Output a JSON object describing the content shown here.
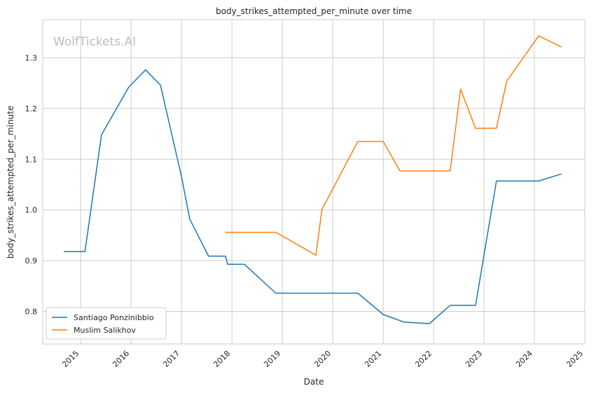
{
  "chart_data": {
    "type": "line",
    "title": "body_strikes_attempted_per_minute over time",
    "xlabel": "Date",
    "ylabel": "body_strikes_attempted_per_minute",
    "watermark": "WolfTickets.AI",
    "x_axis_type": "date",
    "xlim": [
      "2014-04-01",
      "2025-01-01"
    ],
    "ylim": [
      0.736,
      1.375
    ],
    "x_ticks": [
      "2015-01-01",
      "2016-01-01",
      "2017-01-01",
      "2018-01-01",
      "2019-01-01",
      "2020-01-01",
      "2021-01-01",
      "2022-01-01",
      "2023-01-01",
      "2024-01-01",
      "2025-01-01"
    ],
    "x_tick_labels": [
      "2015",
      "2016",
      "2017",
      "2018",
      "2019",
      "2020",
      "2021",
      "2022",
      "2023",
      "2024",
      "2025"
    ],
    "y_ticks": [
      0.8,
      0.9,
      1.0,
      1.1,
      1.2,
      1.3
    ],
    "y_tick_labels": [
      "0.8",
      "0.9",
      "1.0",
      "1.1",
      "1.2",
      "1.3"
    ],
    "grid": true,
    "legend_position": "lower-left",
    "series": [
      {
        "name": "Santiago Ponzinibbio",
        "color": "#1f77b4",
        "points": [
          {
            "x": "2014-09-01",
            "y": 0.918
          },
          {
            "x": "2015-02-01",
            "y": 0.918
          },
          {
            "x": "2015-06-01",
            "y": 1.148
          },
          {
            "x": "2015-12-15",
            "y": 1.242
          },
          {
            "x": "2016-04-15",
            "y": 1.276
          },
          {
            "x": "2016-08-01",
            "y": 1.246
          },
          {
            "x": "2017-01-01",
            "y": 1.065
          },
          {
            "x": "2017-03-01",
            "y": 0.982
          },
          {
            "x": "2017-07-15",
            "y": 0.909
          },
          {
            "x": "2017-11-15",
            "y": 0.909
          },
          {
            "x": "2017-12-01",
            "y": 0.893
          },
          {
            "x": "2018-04-01",
            "y": 0.893
          },
          {
            "x": "2018-11-15",
            "y": 0.836
          },
          {
            "x": "2019-07-01",
            "y": 0.836
          },
          {
            "x": "2020-07-01",
            "y": 0.836
          },
          {
            "x": "2021-01-01",
            "y": 0.794
          },
          {
            "x": "2021-06-01",
            "y": 0.779
          },
          {
            "x": "2021-12-01",
            "y": 0.776
          },
          {
            "x": "2022-05-01",
            "y": 0.812
          },
          {
            "x": "2022-11-01",
            "y": 0.812
          },
          {
            "x": "2023-04-01",
            "y": 1.057
          },
          {
            "x": "2023-07-01",
            "y": 1.057
          },
          {
            "x": "2024-02-01",
            "y": 1.057
          },
          {
            "x": "2024-07-15",
            "y": 1.071
          }
        ]
      },
      {
        "name": "Muslim Salikhov",
        "color": "#ff7f0e",
        "points": [
          {
            "x": "2017-11-15",
            "y": 0.956
          },
          {
            "x": "2018-06-01",
            "y": 0.956
          },
          {
            "x": "2018-11-15",
            "y": 0.956
          },
          {
            "x": "2019-09-01",
            "y": 0.911
          },
          {
            "x": "2019-10-15",
            "y": 1.001
          },
          {
            "x": "2020-07-01",
            "y": 1.135
          },
          {
            "x": "2021-01-01",
            "y": 1.135
          },
          {
            "x": "2021-05-01",
            "y": 1.077
          },
          {
            "x": "2022-05-01",
            "y": 1.077
          },
          {
            "x": "2022-07-15",
            "y": 1.238
          },
          {
            "x": "2022-11-01",
            "y": 1.161
          },
          {
            "x": "2023-04-01",
            "y": 1.161
          },
          {
            "x": "2023-06-15",
            "y": 1.254
          },
          {
            "x": "2024-02-01",
            "y": 1.343
          },
          {
            "x": "2024-07-15",
            "y": 1.321
          }
        ]
      }
    ]
  }
}
